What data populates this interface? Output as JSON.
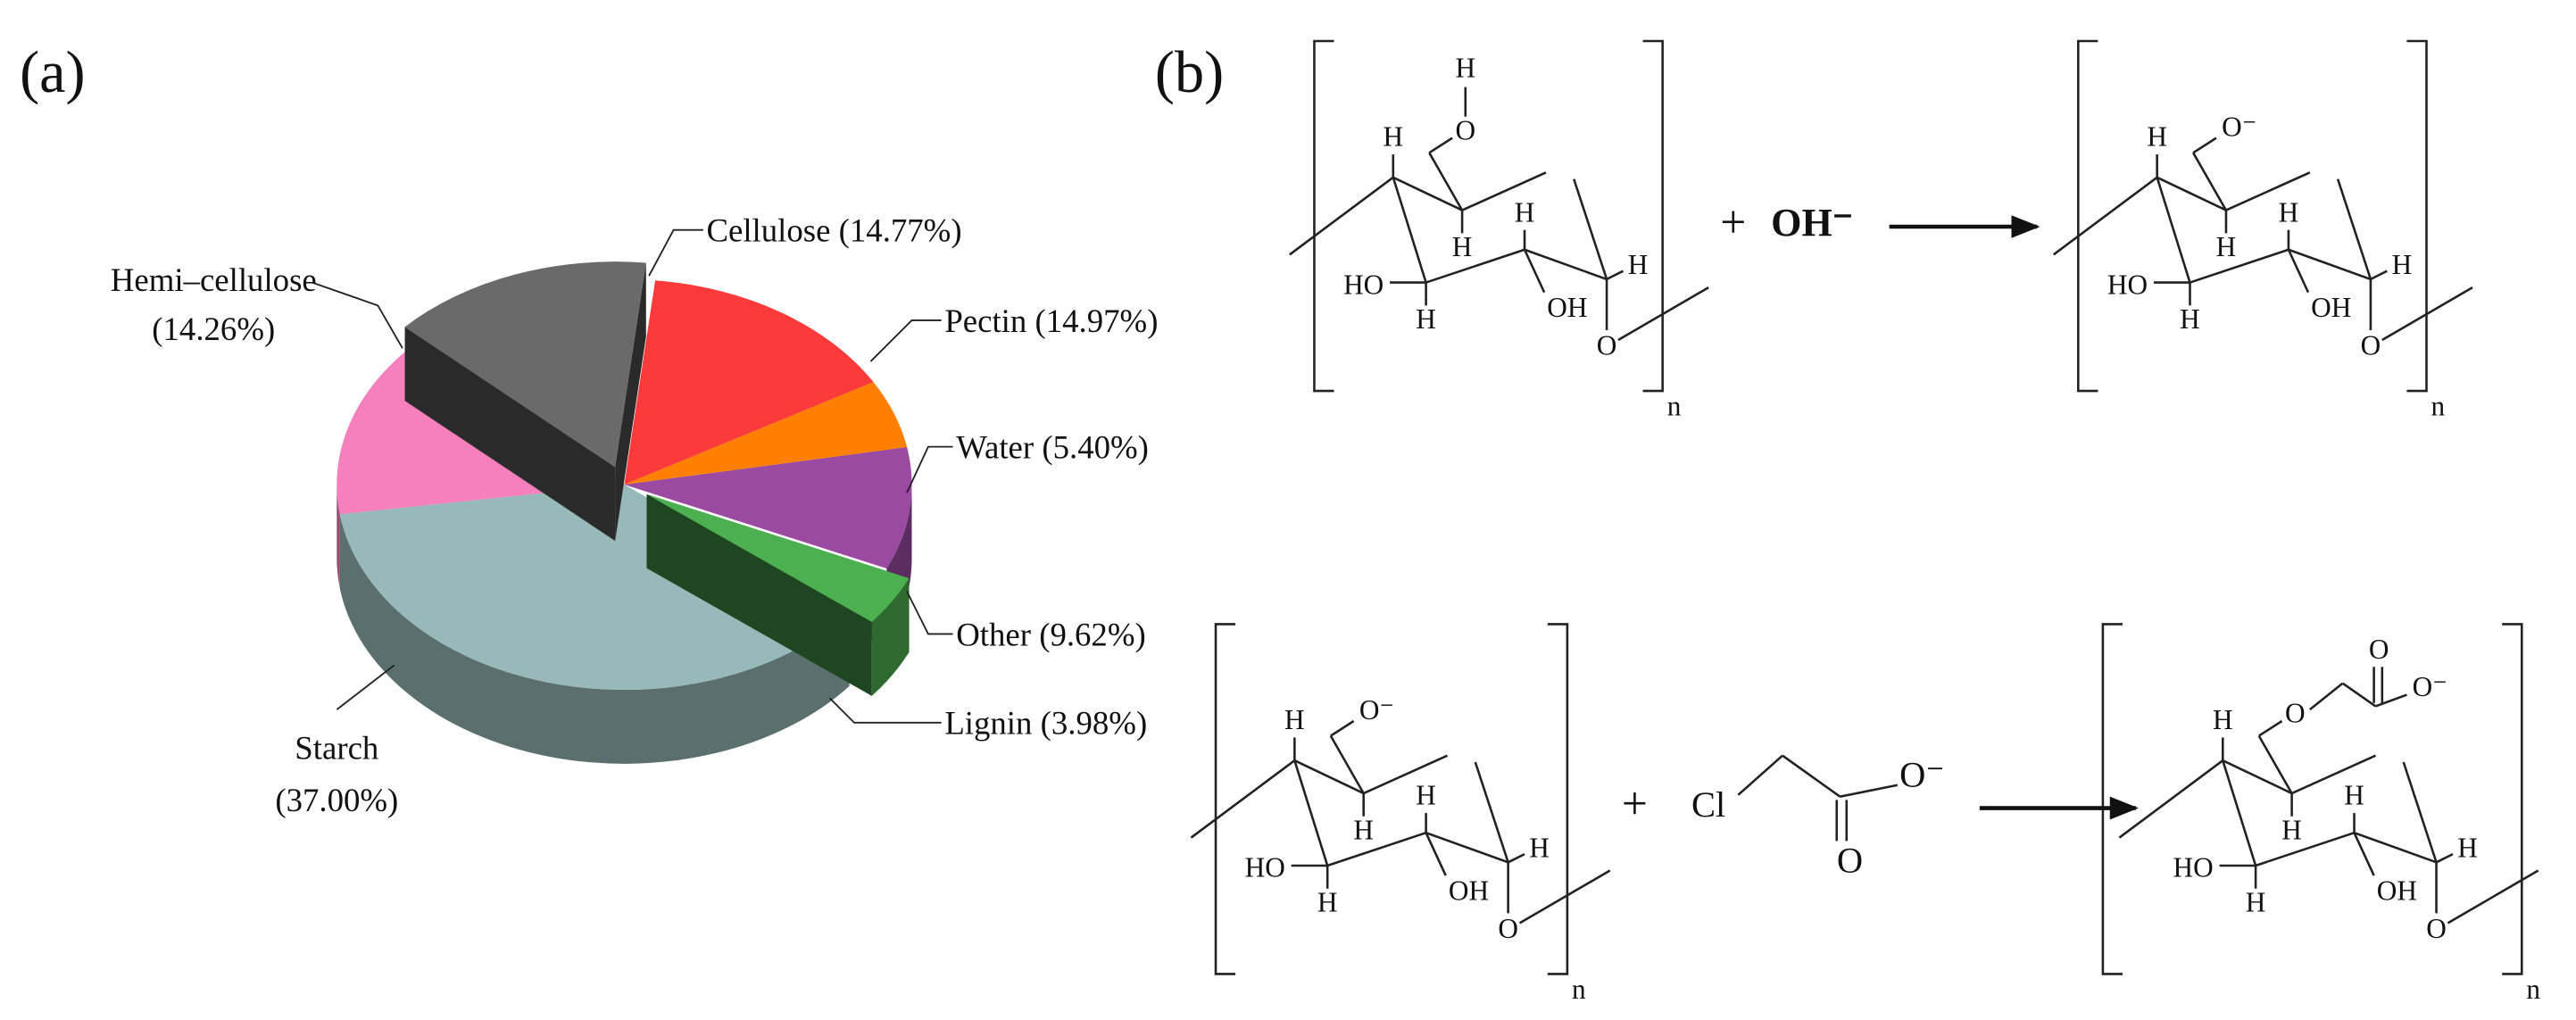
{
  "chart_data": {
    "type": "pie3d",
    "categories": [
      "Cellulose",
      "Pectin",
      "Water",
      "Other",
      "Lignin",
      "Starch",
      "Hemi–cellulose"
    ],
    "values": [
      14.77,
      14.97,
      5.4,
      9.62,
      3.98,
      37,
      14.26
    ],
    "value_labels": [
      "(14.77%)",
      "(14.97%)",
      "(5.40%)",
      "(9.62%)",
      "(3.98%)",
      "(37.00%)",
      "(14.26%)"
    ],
    "colors": [
      "#6a6a6a",
      "#fb3b3b",
      "#ff7f00",
      "#9a4ba1",
      "#4caf50",
      "#97b9b9",
      "#f580bd"
    ],
    "exploded": [
      true,
      false,
      false,
      false,
      true,
      false,
      false
    ]
  },
  "panels": [
    "(a)",
    "(b)"
  ],
  "scheme": {
    "structures": [
      {
        "atoms": [
          "H",
          "H",
          "H",
          "HO",
          "H",
          "OH",
          "H",
          "O",
          "O",
          "H",
          "n"
        ]
      },
      {
        "atoms": [
          "H",
          "H",
          "H",
          "HO",
          "H",
          "OH",
          "H",
          "O",
          "O⁻",
          "n"
        ]
      },
      {
        "atoms": [
          "H",
          "H",
          "H",
          "HO",
          "H",
          "OH",
          "H",
          "O",
          "O⁻",
          "n"
        ]
      },
      {
        "atoms": [
          "H",
          "H",
          "H",
          "HO",
          "H",
          "OH",
          "H",
          "O",
          "O",
          "O",
          "O⁻",
          "n"
        ]
      }
    ],
    "reagents": [
      "+",
      "OH⁻",
      "+",
      "Cl",
      "O⁻",
      "O"
    ]
  }
}
